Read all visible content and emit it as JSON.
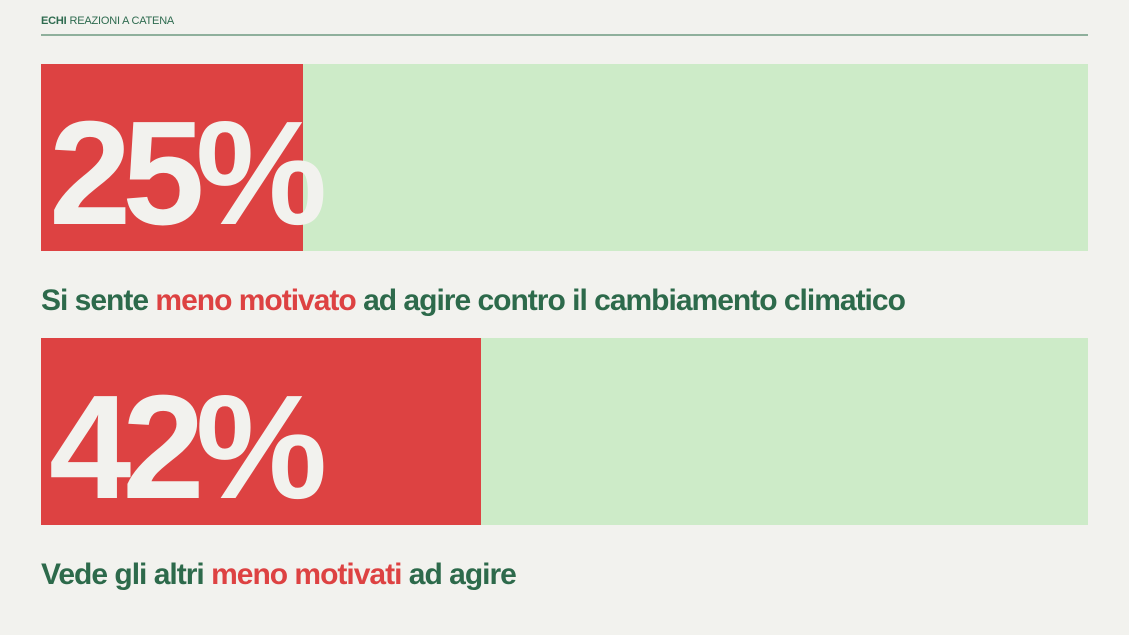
{
  "header": {
    "brand": "ECHI",
    "subtitle": "REAZIONI A CATENA"
  },
  "colors": {
    "fill": "#dd4242",
    "track": "#cdebc8",
    "text_green": "#2d6a4b",
    "background": "#f2f2ee"
  },
  "chart_data": {
    "type": "bar",
    "orientation": "horizontal",
    "xlim": [
      0,
      100
    ],
    "unit": "%",
    "items": [
      {
        "value": 25,
        "label": "25%",
        "caption_before": "Si sente ",
        "caption_highlight": "meno motivato",
        "caption_after": " ad agire contro il cambiamento climatico"
      },
      {
        "value": 42,
        "label": "42%",
        "caption_before": "Vede gli altri ",
        "caption_highlight": "meno motivati",
        "caption_after": " ad agire"
      }
    ]
  }
}
